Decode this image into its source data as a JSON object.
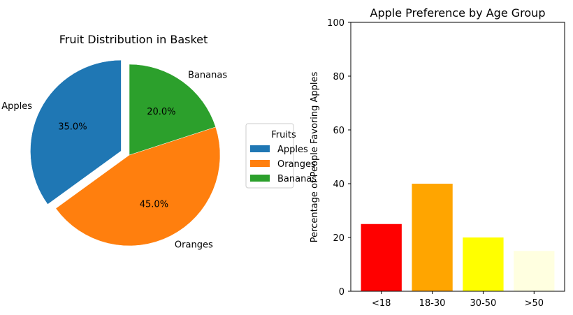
{
  "chart_data": [
    {
      "type": "pie",
      "title": "Fruit Distribution in Basket",
      "categories": [
        "Apples",
        "Oranges",
        "Bananas"
      ],
      "values": [
        35,
        45,
        20
      ],
      "value_labels": [
        "35.0%",
        "45.0%",
        "20.0%"
      ],
      "colors": [
        "#1f77b4",
        "#ff7f0e",
        "#2ca02c"
      ],
      "exploded": [
        "Apples"
      ],
      "legend": {
        "title": "Fruits",
        "placement": "center-right",
        "entries": [
          "Apples",
          "Oranges",
          "Bananas"
        ]
      }
    },
    {
      "type": "bar",
      "title": "Apple Preference by Age Group",
      "xlabel": "",
      "ylabel": "Percentage of People Favoring Apples",
      "categories": [
        "<18",
        "18-30",
        "30-50",
        ">50"
      ],
      "values": [
        25,
        40,
        20,
        15
      ],
      "colors": [
        "#ff0000",
        "#ffa500",
        "#ffff00",
        "#ffffe0"
      ],
      "ylim": [
        0,
        100
      ],
      "yticks": [
        "0",
        "20",
        "40",
        "60",
        "80",
        "100"
      ],
      "grid": false
    }
  ]
}
